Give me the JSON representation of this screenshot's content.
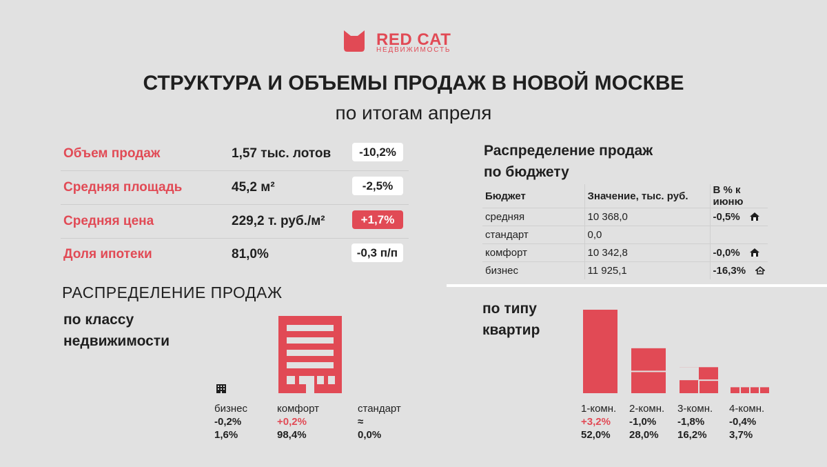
{
  "brand": {
    "name": "RED CAT",
    "subtitle": "НЕДВИЖИМОСТЬ"
  },
  "header": {
    "title": "СТРУКТУРА И ОБЪЕМЫ ПРОДАЖ В НОВОЙ МОСКВЕ",
    "subtitle": "по итогам апреля"
  },
  "kpis": [
    {
      "label": "Объем продаж",
      "value": "1,57 тыс. лотов",
      "change": "-10,2%"
    },
    {
      "label": "Средняя площадь",
      "value": "45,2 м²",
      "change": "-2,5%"
    },
    {
      "label": "Средняя цена",
      "value": "229,2 т. руб./м²",
      "change": "+1,7%"
    },
    {
      "label": "Доля ипотеки",
      "value": "81,0%",
      "change": "-0,3 п/п"
    }
  ],
  "budget": {
    "title_line1": "Распределение продаж",
    "title_line2": "по бюджету",
    "headers": [
      "Бюджет",
      "Значение, тыс. руб.",
      "В % к июню"
    ],
    "rows": [
      {
        "segment": "средняя",
        "value": "10 368,0",
        "pct": "-0,5%"
      },
      {
        "segment": "стандарт",
        "value": "0,0",
        "pct": ""
      },
      {
        "segment": "комфорт",
        "value": "10 342,8",
        "pct": "-0,0%"
      },
      {
        "segment": "бизнес",
        "value": "11 925,1",
        "pct": "-16,3%"
      }
    ]
  },
  "class_section": {
    "title": "РАСПРЕДЕЛЕНИЕ ПРОДАЖ",
    "subtitle_line1": "по классу",
    "subtitle_line2": "недвижимости",
    "items": [
      {
        "name": "бизнес",
        "change": "-0,2%",
        "share": "1,6%"
      },
      {
        "name": "комфорт",
        "change": "+0,2%",
        "share": "98,4%"
      },
      {
        "name": "стандарт",
        "change": "≈",
        "share": "0,0%"
      }
    ]
  },
  "type_section": {
    "title_line1": "по типу",
    "title_line2": "квартир",
    "items": [
      {
        "name": "1-комн.",
        "change": "+3,2%",
        "share": "52,0%"
      },
      {
        "name": "2-комн.",
        "change": "-1,0%",
        "share": "28,0%"
      },
      {
        "name": "3-комн.",
        "change": "-1,8%",
        "share": "16,2%"
      },
      {
        "name": "4-комн.",
        "change": "-0,4%",
        "share": "3,7%"
      }
    ]
  },
  "chart_data": {
    "type": "bar",
    "title": "по типу квартир",
    "categories": [
      "1-комн.",
      "2-комн.",
      "3-комн.",
      "4-комн."
    ],
    "values": [
      52.0,
      28.0,
      16.2,
      3.7
    ],
    "changes": [
      "+3,2%",
      "-1,0%",
      "-1,8%",
      "-0,4%"
    ],
    "unit": "%",
    "ylim": [
      0,
      55
    ]
  },
  "colors": {
    "accent": "#e14a55",
    "background": "#e1e1e1",
    "text": "#1f1f1f",
    "card": "#ffffff"
  }
}
